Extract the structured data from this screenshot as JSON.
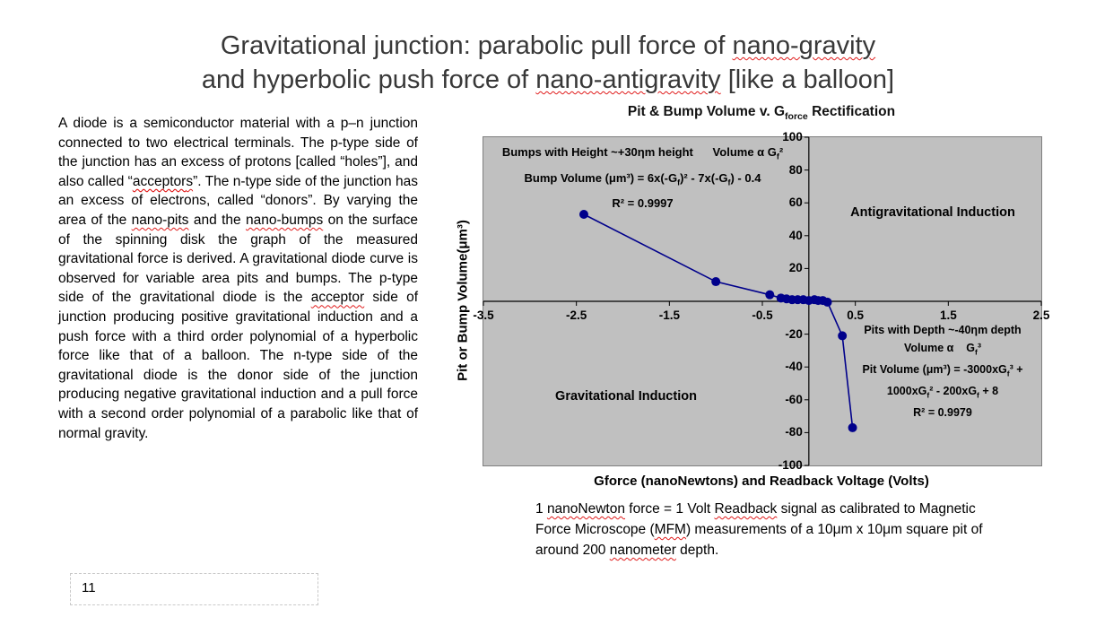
{
  "slide": {
    "title_lines": [
      "Gravitational junction: parabolic pull force of nano-gravity",
      "and hyperbolic push force of nano-antigravity [like a balloon]"
    ],
    "body_text": "A diode is a semiconductor material with a p–n junction connected to two electrical terminals. The p-type side of the junction has an excess of protons [called “holes”], and also called “acceptors”. The n-type side of the junction has an excess of electrons, called “donors”. By varying the area of the nano-pits and the nano-bumps on the surface of the spinning disk the graph of the measured gravitational force is derived. A gravitational diode curve is observed for variable area pits and bumps. The p-type side of the gravitational diode is the acceptor side of junction producing positive gravitational induction and a push force with a third order polynomial of a hyperbolic force like that of a balloon. The n-type side of the gravitational diode is the donor side of the junction producing negative gravitational induction and a pull force with a second order polynomial of a parabolic like that of normal gravity.",
    "caption_text": "1 nanoNewton force = 1 Volt Readback signal as calibrated to Magnetic Force Microscope (MFM) measurements of a 10μm x 10μm square pit of around 200 nanometer depth.",
    "page_number": "11"
  },
  "misspelled_words": [
    "nano-antigravity",
    "nano-gravity",
    "nanoNewton",
    "nano-bumps",
    "nano-pits",
    "acceptors",
    "acceptor",
    "nanometer",
    "Readback",
    "MFM"
  ],
  "chart_data": {
    "type": "line",
    "title": "Pit & Bump Volume v. G_{force} Rectification",
    "x_axis_title": "Gforce (nanoNewtons) and Readback Voltage (Volts)",
    "y_axis_title": "Pit or Bump Volume(μm³)",
    "xlim": [
      -3.5,
      2.5
    ],
    "ylim": [
      -100,
      100
    ],
    "xticks": [
      -3.5,
      -2.5,
      -1.5,
      -0.5,
      0.5,
      1.5,
      2.5
    ],
    "yticks": [
      100,
      80,
      60,
      40,
      20,
      -20,
      -40,
      -60,
      -80,
      -100
    ],
    "grid": false,
    "legend": "none",
    "plot_bg": "#c0c0c0",
    "series": [
      {
        "name": "Pit or Bump Volume",
        "color": "#00008B",
        "points": [
          [
            -2.42,
            53
          ],
          [
            -1.0,
            12
          ],
          [
            -0.42,
            4
          ],
          [
            -0.3,
            2
          ],
          [
            -0.24,
            1.5
          ],
          [
            -0.18,
            1
          ],
          [
            -0.12,
            1
          ],
          [
            -0.06,
            1
          ],
          [
            0.0,
            0.5
          ],
          [
            0.06,
            1
          ],
          [
            0.1,
            0.5
          ],
          [
            0.15,
            0.5
          ],
          [
            0.2,
            -0.5
          ],
          [
            0.36,
            -21
          ],
          [
            0.47,
            -77
          ]
        ]
      }
    ],
    "annotations": {
      "bumps": [
        "Bumps with Height ~+30ηm height   Volume α G_{f}²",
        "Bump Volume (μm³) = 6x(-G_{f})² - 7x(-G_{f}) - 0.4",
        "R² = 0.9997"
      ],
      "antigrav": "Antigravitational Induction",
      "grav": "Gravitational Induction",
      "pits": [
        "Pits with Depth ~-40ηm depth",
        "Volume α  G_{f}³",
        "Pit Volume (μm³) = -3000xG_{f}³ +",
        "1000xG_{f}² - 200xG_{f} + 8",
        "R² = 0.9979"
      ]
    }
  }
}
